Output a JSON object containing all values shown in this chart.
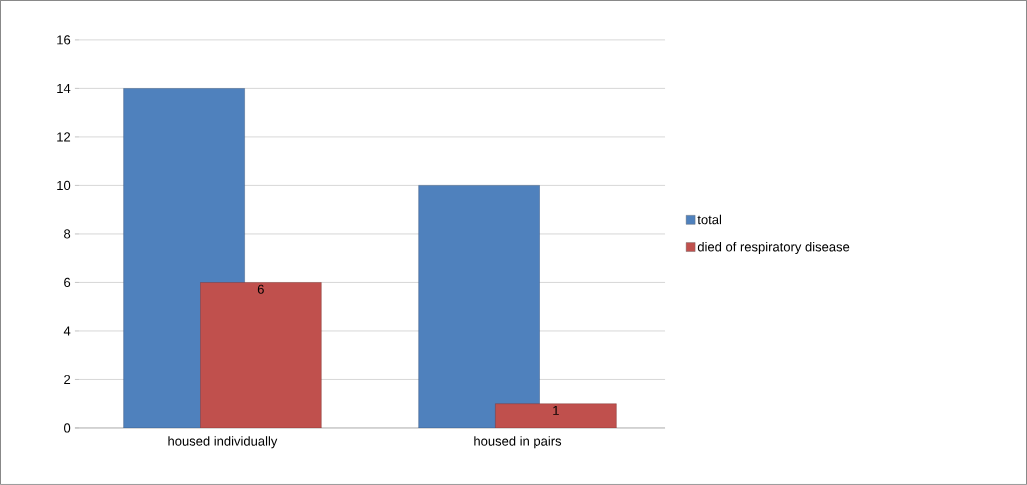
{
  "chart_data": {
    "type": "bar",
    "categories": [
      "housed individually",
      "housed in pairs"
    ],
    "series": [
      {
        "name": "total",
        "color": "#4f81bd",
        "values": [
          14,
          10
        ]
      },
      {
        "name": "died of respiratory disease",
        "color": "#c0504d",
        "values": [
          6,
          1
        ],
        "value_labels": [
          "6",
          "1"
        ]
      }
    ],
    "ylim": [
      0,
      16
    ],
    "yticks": [
      0,
      2,
      4,
      6,
      8,
      10,
      12,
      14,
      16
    ],
    "grid": "y",
    "legend": "right"
  }
}
